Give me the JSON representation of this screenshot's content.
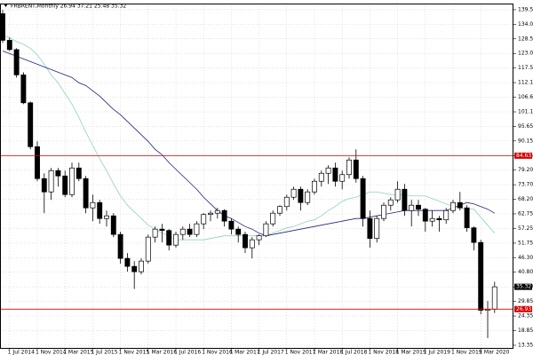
{
  "chart_data": {
    "type": "candlestick",
    "title": "FRBRENT,Monthly",
    "categories": [
      null,
      "1 Jul 2014",
      null,
      null,
      null,
      "1 Nov 2014",
      null,
      null,
      null,
      "1 Mar 2015",
      null,
      null,
      null,
      "1 Jul 2015",
      null,
      null,
      null,
      "1 Nov 2015",
      null,
      null,
      null,
      "1 Mar 2016",
      null,
      null,
      null,
      "1 Jul 2016",
      null,
      null,
      null,
      "1 Nov 2016",
      null,
      null,
      null,
      "1 Mar 2017",
      null,
      null,
      null,
      "1 Jul 2017",
      null,
      null,
      null,
      "1 Nov 2017",
      null,
      null,
      null,
      "1 Mar 2018",
      null,
      null,
      null,
      "1 Jul 2018",
      null,
      null,
      null,
      "1 Nov 2018",
      null,
      null,
      null,
      "1 Mar 2019",
      null,
      null,
      null,
      "1 Jul 2019",
      null,
      null,
      null,
      "1 Nov 2019",
      null,
      null,
      null,
      "1 Mar 2020",
      null,
      null
    ],
    "open": [
      138,
      128,
      124.5,
      115,
      104.5,
      88,
      76,
      71,
      79,
      77,
      70,
      80,
      76,
      65,
      67,
      61,
      62,
      55,
      46,
      43,
      41,
      45,
      54,
      57,
      56.5,
      51,
      55,
      57,
      55,
      59,
      62.5,
      63,
      64,
      60,
      57,
      55,
      50,
      53,
      54.5,
      59,
      63,
      65.5,
      69,
      72,
      67,
      71,
      75,
      78,
      80,
      75,
      77.5,
      83,
      76,
      61,
      53.5,
      61,
      66,
      68,
      72,
      64,
      66,
      64.5,
      60,
      61,
      60.5,
      64,
      67,
      65,
      57.5,
      52,
      26.5,
      26.94
    ],
    "high": [
      139.5,
      129,
      125,
      116,
      105,
      90,
      78,
      80,
      80,
      79,
      82,
      82,
      77,
      70,
      68,
      64,
      63,
      56,
      48,
      45,
      46,
      55,
      58,
      59,
      57,
      56,
      58,
      59,
      60,
      63,
      64,
      65,
      64.5,
      61,
      58,
      56,
      54,
      55,
      60,
      64,
      66,
      70,
      73,
      73,
      72,
      76,
      79,
      81,
      82,
      79,
      84,
      87,
      77,
      64,
      62,
      67,
      69,
      75,
      74,
      68,
      68,
      65,
      64,
      62,
      65,
      68,
      71,
      66,
      58,
      53,
      30,
      37.21
    ],
    "low": [
      127,
      124,
      114,
      104,
      87,
      75,
      63,
      68,
      73,
      69,
      69,
      75,
      63,
      60,
      59,
      58,
      54,
      44,
      41,
      34.5,
      40,
      44,
      52,
      52,
      49,
      50,
      53,
      54,
      54,
      57,
      60,
      61,
      58,
      55,
      52,
      48,
      46,
      51,
      54,
      58,
      62,
      64,
      68,
      64,
      66,
      70,
      73,
      74,
      73,
      72,
      76,
      74.5,
      58,
      50,
      52,
      60,
      64,
      67,
      62,
      58,
      62,
      56,
      58,
      56,
      59,
      63,
      64,
      56,
      49,
      25,
      16,
      25.48
    ],
    "close": [
      128,
      124.5,
      115,
      104.5,
      88,
      76,
      71,
      79,
      77,
      70,
      80,
      76,
      65,
      67,
      61,
      62,
      55,
      46,
      43,
      41,
      45,
      54,
      57,
      56.5,
      51,
      55,
      57,
      55,
      59,
      62.5,
      63,
      64,
      60,
      57,
      55,
      50,
      53,
      54.5,
      59,
      63,
      65.5,
      69,
      72,
      67,
      71,
      75,
      78,
      80,
      75,
      77.5,
      83,
      76,
      61,
      53.5,
      61,
      66,
      68,
      72,
      64,
      66,
      64.5,
      60,
      61,
      60.5,
      64,
      67,
      65,
      57.5,
      52,
      26.5,
      26.94,
      35.32
    ],
    "up_color": "#ffffff",
    "down_color": "#000000",
    "lines": [
      {
        "color": "#8fd3b6",
        "values": [
          130,
          129,
          127.5,
          126.5,
          125,
          122.5,
          119,
          115,
          112,
          108,
          104,
          99,
          93.5,
          88.5,
          83.5,
          79,
          74,
          69.5,
          66,
          63.5,
          61,
          58.5,
          57,
          55.5,
          54.5,
          53,
          53,
          53,
          53,
          53,
          53.5,
          54,
          54.5,
          54.5,
          54.5,
          54.5,
          54.5,
          54.5,
          54.5,
          55.5,
          56.5,
          57.5,
          58,
          59,
          60,
          60.5,
          62,
          64,
          65.5,
          67.5,
          68.5,
          69,
          70,
          71,
          71,
          70.5,
          70,
          70,
          70,
          69.5,
          69.5,
          69.5,
          68.5,
          67.5,
          66.5,
          65.5,
          65,
          64.5,
          64.5,
          61.5,
          58.5,
          55.5
        ]
      },
      {
        "color": "#23237a",
        "values": [
          124,
          123,
          122,
          121,
          120,
          119,
          118,
          117,
          116,
          115,
          114,
          112,
          111,
          109,
          107,
          104.5,
          102,
          100,
          97.5,
          95,
          92.5,
          90,
          87,
          85,
          82,
          79.5,
          77,
          74.5,
          72,
          69,
          66.5,
          64,
          62,
          61,
          59.5,
          58,
          57,
          55.5,
          54.5,
          55,
          55.5,
          56,
          56.5,
          57,
          57.5,
          58,
          58.5,
          59,
          59.5,
          60,
          60.5,
          61,
          61,
          61.5,
          62,
          62.5,
          63,
          63.5,
          64,
          64,
          64,
          64,
          64,
          64,
          64,
          65,
          66,
          67,
          66.5,
          65.5,
          64.5,
          63
        ]
      }
    ],
    "levels": [
      84.63,
      26.93
    ],
    "level_color": "#d40000",
    "ylim": [
      12.35,
      141.15
    ],
    "yticks": [
      {
        "value": 139.5,
        "label": "139.50"
      },
      {
        "value": 134,
        "label": "134.00"
      },
      {
        "value": 128.55,
        "label": "128.55"
      },
      {
        "value": 123.05,
        "label": "123.05"
      },
      {
        "value": 117.55,
        "label": "117.55"
      },
      {
        "value": 112.1,
        "label": "112.10"
      },
      {
        "value": 106.6,
        "label": "106.60"
      },
      {
        "value": 101.1,
        "label": "101.10"
      },
      {
        "value": 95.65,
        "label": "95.65"
      },
      {
        "value": 90.15,
        "label": "90.15"
      },
      {
        "value": 84.65,
        "label": "84.65"
      },
      {
        "value": 79.2,
        "label": "79.20"
      },
      {
        "value": 73.7,
        "label": "73.70"
      },
      {
        "value": 68.2,
        "label": "68.20"
      },
      {
        "value": 62.75,
        "label": "62.75"
      },
      {
        "value": 57.25,
        "label": "57.25"
      },
      {
        "value": 51.75,
        "label": "51.75"
      },
      {
        "value": 46.3,
        "label": "46.30"
      },
      {
        "value": 40.8,
        "label": "40.80"
      },
      {
        "value": 35.3,
        "label": "35.30"
      },
      {
        "value": 29.85,
        "label": "29.85"
      },
      {
        "value": 24.35,
        "label": "24.35"
      },
      {
        "value": 18.85,
        "label": "18.85"
      },
      {
        "value": 13.35,
        "label": "13.35"
      }
    ],
    "grid": true
  }
}
